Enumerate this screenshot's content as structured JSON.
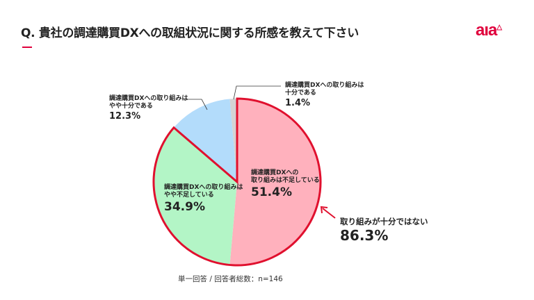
{
  "header": {
    "title": "Q. 貴社の調達購買DXへの取組状況に関する所感を教えて下さい",
    "logo": "aıa"
  },
  "chart_data": {
    "type": "pie",
    "title": "Q. 貴社の調達購買DXへの取組状況に関する所感を教えて下さい",
    "start": "top",
    "direction": "clockwise",
    "slices": [
      {
        "label": "調達購買DXへの取り組みは不足している",
        "label_lines": [
          "調達購買DXへの",
          "取り組みは不足している"
        ],
        "value": 51.4,
        "display": "51.4%",
        "color": "#ffb1bd"
      },
      {
        "label": "調達購買DXへの取り組みはやや不足している",
        "label_lines": [
          "調達購買DXへの取り組みは",
          "やや不足している"
        ],
        "value": 34.9,
        "display": "34.9%",
        "color": "#b3f5c6"
      },
      {
        "label": "調達購買DXへの取り組みはやや十分である",
        "label_lines": [
          "調達購買DXへの取り組みは",
          "やや十分である"
        ],
        "value": 12.3,
        "display": "12.3%",
        "color": "#b3dcfb"
      },
      {
        "label": "調達購買DXへの取り組みは十分である",
        "label_lines": [
          "調達購買DXへの取り組みは",
          "十分である"
        ],
        "value": 1.4,
        "display": "1.4%",
        "color": "#d4d4d4"
      }
    ],
    "highlight": {
      "label": "取り組みが十分ではない",
      "value": 86.3,
      "display": "86.3%",
      "color": "#e0102e",
      "slices": [
        0,
        1
      ]
    },
    "note": "単一回答 / 回答者総数：n=146"
  }
}
